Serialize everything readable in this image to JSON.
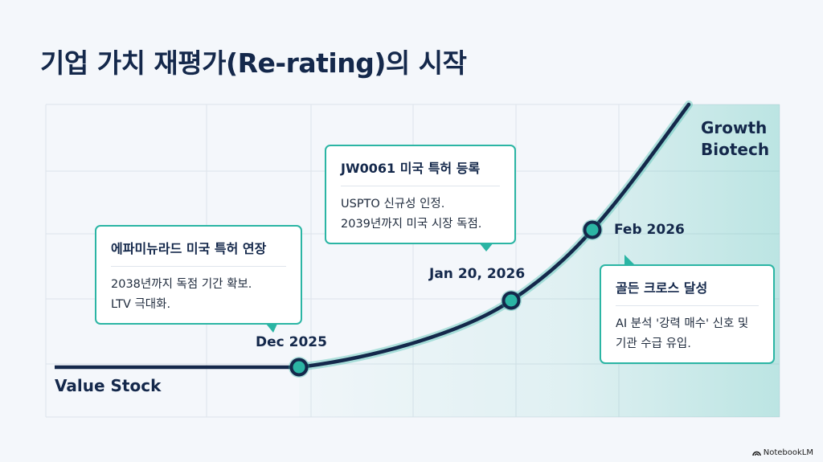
{
  "title": "기업 가치 재평가(Re-rating)의 시작",
  "stages": {
    "start": "Value Stock",
    "end_line1": "Growth",
    "end_line2": "Biotech"
  },
  "milestones": [
    {
      "date": "Dec 2025",
      "heading": "에파미뉴라드 미국 특허 연장",
      "lines": [
        "2038년까지 독점 기간 확보.",
        "LTV 극대화."
      ]
    },
    {
      "date": "Jan 20, 2026",
      "heading": "JW0061 미국 특허 등록",
      "lines": [
        "USPTO 신규성 인정.",
        "2039년까지 미국 시장 독점."
      ]
    },
    {
      "date": "Feb 2026",
      "heading": "골든 크로스 달성",
      "lines": [
        "AI 분석 '강력 매수' 신호 및",
        "기관 수급 유입."
      ]
    }
  ],
  "watermark": "NotebookLM",
  "colors": {
    "navy": "#14284b",
    "teal": "#2bb5a4",
    "background": "#f4f7fb",
    "grid": "#dfe5ec"
  },
  "icons": {
    "watermark": "notebooklm-logo-icon"
  }
}
